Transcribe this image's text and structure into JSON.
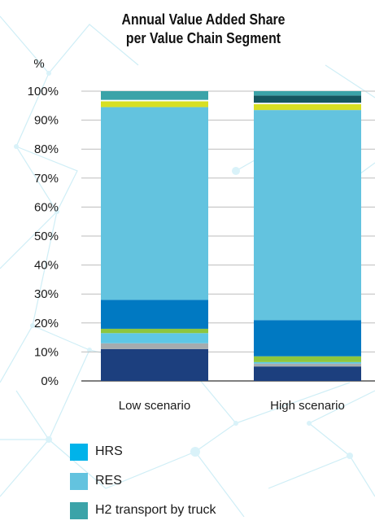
{
  "chart_data": {
    "type": "bar",
    "stacked": true,
    "title": [
      "Annual Value Added Share",
      "per Value Chain Segment"
    ],
    "ylabel": "%",
    "ylim": [
      0,
      100
    ],
    "yticks": [
      "0%",
      "10%",
      "20%",
      "30%",
      "40%",
      "50%",
      "60%",
      "70%",
      "80%",
      "90%",
      "100%"
    ],
    "categories": [
      "Low scenario",
      "High scenario"
    ],
    "grid": true,
    "series": [
      {
        "name": "",
        "color": "#1c3f7e",
        "values": [
          11,
          5
        ]
      },
      {
        "name": "",
        "color": "#a5acaf",
        "values": [
          2,
          1
        ]
      },
      {
        "name": "",
        "color": "#5ec7e6",
        "values": [
          3.5,
          0.5
        ]
      },
      {
        "name": "",
        "color": "#8dc63f",
        "values": [
          1.5,
          2
        ]
      },
      {
        "name": "",
        "color": "#0079c2",
        "values": [
          10,
          12.5
        ]
      },
      {
        "name": "RES",
        "color": "#63c3df",
        "values": [
          66.5,
          72.5
        ]
      },
      {
        "name": "",
        "color": "#d7df23",
        "values": [
          2,
          2
        ]
      },
      {
        "name": "",
        "color": "#ffffff",
        "values": [
          0.5,
          0.5
        ]
      },
      {
        "name": "",
        "color": "#155660",
        "values": [
          0,
          2.5
        ]
      },
      {
        "name": "H2 transport by truck",
        "color": "#3ba3a8",
        "values": [
          3,
          1.5
        ]
      }
    ],
    "legend": {
      "placement": "bottom",
      "items": [
        {
          "label": "HRS",
          "color": "#00b3ea"
        },
        {
          "label": "RES",
          "color": "#63c3df"
        },
        {
          "label": "H2 transport by truck",
          "color": "#3ba3a8"
        }
      ]
    }
  }
}
